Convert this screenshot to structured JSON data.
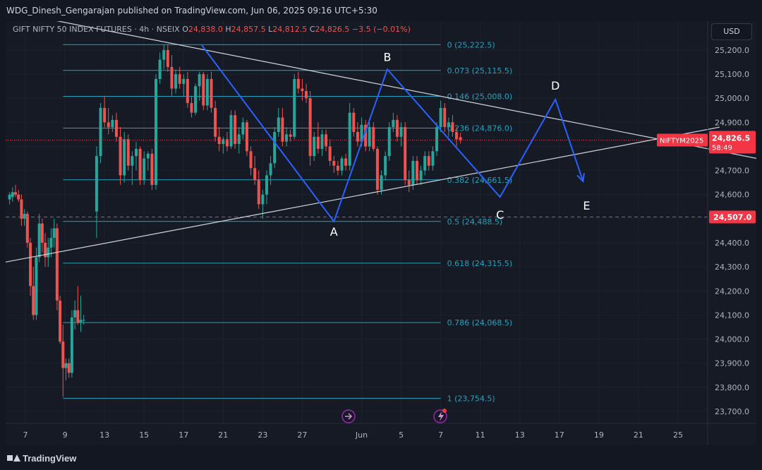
{
  "header": {
    "published_by": "WDG_Dinesh_Gengarajan published on TradingView.com, Jun 06, 2025 09:16 UTC+5:30"
  },
  "legend": {
    "symbol": "GIFT NIFTY 50 INDEX FUTURES · 4h · NSEIX",
    "o_label": "O",
    "open": "24,838.0",
    "h_label": "H",
    "high": "24,857.5",
    "l_label": "L",
    "low": "24,812.5",
    "c_label": "C",
    "close": "24,826.5",
    "change": "−3.5 (−0.01%)"
  },
  "currency": "USD",
  "footer": {
    "brand": "TradingView"
  },
  "colors": {
    "background": "#131722",
    "up": "#26a69a",
    "down": "#ef5350",
    "fib": "#22a3bd",
    "pattern": "#2962ff",
    "trend": "#d1d4dc",
    "tag": "#f23645"
  },
  "icons": [
    "chart-arrow-icon",
    "flash-alert-icon"
  ],
  "chart_data": {
    "type": "candlestick",
    "timeframe": "4h",
    "ylim": [
      23650,
      25320
    ],
    "y_ticks": [
      23700,
      23800,
      23900,
      24000,
      24100,
      24200,
      24300,
      24400,
      24500,
      24600,
      24700,
      24800,
      24900,
      25000,
      25100,
      25200
    ],
    "y_tick_labels": [
      "23,700.0",
      "23,800.0",
      "23,900.0",
      "24,000.0",
      "24,100.0",
      "24,200.0",
      "24,300.0",
      "24,400.0",
      "24,500.0",
      "24,600.0",
      "24,700.0",
      "24,800.0",
      "24,900.0",
      "25,000.0",
      "25,100.0",
      "25,200.0"
    ],
    "x_ticks": [
      {
        "day": 7,
        "label": "7"
      },
      {
        "day": 9,
        "label": "9"
      },
      {
        "day": 11,
        "label": "13"
      },
      {
        "day": 13,
        "label": "15"
      },
      {
        "day": 15,
        "label": "17"
      },
      {
        "day": 17,
        "label": "21"
      },
      {
        "day": 19,
        "label": "23"
      },
      {
        "day": 21,
        "label": "27"
      },
      {
        "day": 24,
        "label": "Jun"
      },
      {
        "day": 26,
        "label": "5"
      },
      {
        "day": 28,
        "label": "7"
      },
      {
        "day": 30,
        "label": "11"
      },
      {
        "day": 32,
        "label": "13"
      },
      {
        "day": 34,
        "label": "17"
      },
      {
        "day": 36,
        "label": "19"
      },
      {
        "day": 38,
        "label": "21"
      },
      {
        "day": 40,
        "label": "25"
      }
    ],
    "fib_levels": [
      {
        "label": "0 (25,222.5)",
        "price": 25222.5
      },
      {
        "label": "0.073 (25,115.5)",
        "price": 25115.5
      },
      {
        "label": "0.146 (25,008.0)",
        "price": 25008.0
      },
      {
        "label": "0.236 (24,876.0)",
        "price": 24876.0
      },
      {
        "label": "0.382 (24,661.5)",
        "price": 24661.5
      },
      {
        "label": "0.5 (24,488.5)",
        "price": 24488.5
      },
      {
        "label": "0.618 (24,315.5)",
        "price": 24315.5
      },
      {
        "label": "0.786 (24,068.5)",
        "price": 24068.5
      },
      {
        "label": "1 (23,754.5)",
        "price": 23754.5
      }
    ],
    "fib_range_days": [
      8.9,
      28.0
    ],
    "pattern_points": [
      {
        "label": "",
        "day": 15.9,
        "price": 25222.5
      },
      {
        "label": "A",
        "day": 22.6,
        "price": 24488.5
      },
      {
        "label": "B",
        "day": 25.3,
        "price": 25120
      },
      {
        "label": "C",
        "day": 31.0,
        "price": 24590
      },
      {
        "label": "D",
        "day": 33.8,
        "price": 24995
      },
      {
        "label": "E",
        "day": 35.2,
        "price": 24655
      }
    ],
    "trendlines": [
      {
        "from": {
          "day": 6.2,
          "price": 25360
        },
        "to": {
          "day": 44.0,
          "price": 24750
        }
      },
      {
        "from": {
          "day": 6.0,
          "price": 24320
        },
        "to": {
          "day": 42.1,
          "price": 24880
        }
      }
    ],
    "reference_price": {
      "label": "24,507.0",
      "price": 24507.0
    },
    "last_price": {
      "symbol": "NIFTYM2025",
      "label": "24,826.5",
      "price": 24826.5,
      "countdown": "58:49"
    },
    "candles": [
      {
        "d": 6.2,
        "o": 24580,
        "h": 24610,
        "l": 24560,
        "c": 24600
      },
      {
        "d": 6.35,
        "o": 24590,
        "h": 24630,
        "l": 24570,
        "c": 24610
      },
      {
        "d": 6.5,
        "o": 24610,
        "h": 24640,
        "l": 24590,
        "c": 24600
      },
      {
        "d": 6.65,
        "o": 24600,
        "h": 24620,
        "l": 24570,
        "c": 24580
      },
      {
        "d": 6.8,
        "o": 24580,
        "h": 24600,
        "l": 24470,
        "c": 24500
      },
      {
        "d": 6.95,
        "o": 24500,
        "h": 24540,
        "l": 24470,
        "c": 24520
      },
      {
        "d": 7.1,
        "o": 24520,
        "h": 24530,
        "l": 24380,
        "c": 24400
      },
      {
        "d": 7.25,
        "o": 24400,
        "h": 24420,
        "l": 24180,
        "c": 24220
      },
      {
        "d": 7.4,
        "o": 24220,
        "h": 24300,
        "l": 24080,
        "c": 24100
      },
      {
        "d": 7.55,
        "o": 24100,
        "h": 24380,
        "l": 24080,
        "c": 24340
      },
      {
        "d": 7.7,
        "o": 24340,
        "h": 24520,
        "l": 24320,
        "c": 24480
      },
      {
        "d": 7.85,
        "o": 24480,
        "h": 24500,
        "l": 24360,
        "c": 24400
      },
      {
        "d": 8.0,
        "o": 24400,
        "h": 24440,
        "l": 24300,
        "c": 24340
      },
      {
        "d": 8.15,
        "o": 24340,
        "h": 24420,
        "l": 24300,
        "c": 24380
      },
      {
        "d": 8.3,
        "o": 24380,
        "h": 24460,
        "l": 24340,
        "c": 24420
      },
      {
        "d": 8.45,
        "o": 24420,
        "h": 24500,
        "l": 24380,
        "c": 24460
      },
      {
        "d": 8.6,
        "o": 24460,
        "h": 24480,
        "l": 24120,
        "c": 24160
      },
      {
        "d": 8.75,
        "o": 24160,
        "h": 24180,
        "l": 23980,
        "c": 23990
      },
      {
        "d": 8.9,
        "o": 23990,
        "h": 24060,
        "l": 23760,
        "c": 23880
      },
      {
        "d": 9.05,
        "o": 23880,
        "h": 23920,
        "l": 23830,
        "c": 23900
      },
      {
        "d": 9.2,
        "o": 23900,
        "h": 23920,
        "l": 23840,
        "c": 23860
      },
      {
        "d": 9.35,
        "o": 23860,
        "h": 24120,
        "l": 23840,
        "c": 24090
      },
      {
        "d": 9.5,
        "o": 24090,
        "h": 24160,
        "l": 24040,
        "c": 24120
      },
      {
        "d": 9.65,
        "o": 24120,
        "h": 24220,
        "l": 24060,
        "c": 24070
      },
      {
        "d": 9.8,
        "o": 24070,
        "h": 24180,
        "l": 24030,
        "c": 24080
      },
      {
        "d": 9.95,
        "o": 24080,
        "h": 24100,
        "l": 24060,
        "c": 24080
      },
      {
        "d": 10.6,
        "o": 24530,
        "h": 24800,
        "l": 24420,
        "c": 24760
      },
      {
        "d": 10.8,
        "o": 24760,
        "h": 24980,
        "l": 24730,
        "c": 24960
      },
      {
        "d": 11.0,
        "o": 24960,
        "h": 25010,
        "l": 24880,
        "c": 24900
      },
      {
        "d": 11.2,
        "o": 24900,
        "h": 24960,
        "l": 24850,
        "c": 24880
      },
      {
        "d": 11.4,
        "o": 24880,
        "h": 24930,
        "l": 24860,
        "c": 24910
      },
      {
        "d": 11.6,
        "o": 24910,
        "h": 24940,
        "l": 24820,
        "c": 24840
      },
      {
        "d": 11.8,
        "o": 24840,
        "h": 24880,
        "l": 24640,
        "c": 24680
      },
      {
        "d": 12.0,
        "o": 24680,
        "h": 24860,
        "l": 24650,
        "c": 24830
      },
      {
        "d": 12.2,
        "o": 24830,
        "h": 24850,
        "l": 24700,
        "c": 24720
      },
      {
        "d": 12.4,
        "o": 24720,
        "h": 24780,
        "l": 24640,
        "c": 24760
      },
      {
        "d": 12.6,
        "o": 24760,
        "h": 24820,
        "l": 24700,
        "c": 24790
      },
      {
        "d": 12.8,
        "o": 24790,
        "h": 24800,
        "l": 24640,
        "c": 24660
      },
      {
        "d": 13.0,
        "o": 24660,
        "h": 24780,
        "l": 24640,
        "c": 24750
      },
      {
        "d": 13.2,
        "o": 24750,
        "h": 24780,
        "l": 24700,
        "c": 24770
      },
      {
        "d": 13.4,
        "o": 24770,
        "h": 24790,
        "l": 24620,
        "c": 24640
      },
      {
        "d": 13.6,
        "o": 24640,
        "h": 25100,
        "l": 24620,
        "c": 25080
      },
      {
        "d": 13.8,
        "o": 25080,
        "h": 25190,
        "l": 25060,
        "c": 25160
      },
      {
        "d": 14.0,
        "o": 25160,
        "h": 25222,
        "l": 25120,
        "c": 25200
      },
      {
        "d": 14.2,
        "o": 25200,
        "h": 25222,
        "l": 25110,
        "c": 25130
      },
      {
        "d": 14.4,
        "o": 25130,
        "h": 25180,
        "l": 25010,
        "c": 25040
      },
      {
        "d": 14.6,
        "o": 25040,
        "h": 25120,
        "l": 25020,
        "c": 25100
      },
      {
        "d": 14.8,
        "o": 25100,
        "h": 25130,
        "l": 25040,
        "c": 25060
      },
      {
        "d": 15.0,
        "o": 25060,
        "h": 25100,
        "l": 25010,
        "c": 25080
      },
      {
        "d": 15.2,
        "o": 25080,
        "h": 25110,
        "l": 24960,
        "c": 24980
      },
      {
        "d": 15.4,
        "o": 24980,
        "h": 25010,
        "l": 24920,
        "c": 24940
      },
      {
        "d": 15.6,
        "o": 24940,
        "h": 25060,
        "l": 24930,
        "c": 25050
      },
      {
        "d": 15.8,
        "o": 25050,
        "h": 25110,
        "l": 24990,
        "c": 25100
      },
      {
        "d": 16.0,
        "o": 25100,
        "h": 25110,
        "l": 24950,
        "c": 24970
      },
      {
        "d": 16.2,
        "o": 24970,
        "h": 25100,
        "l": 24950,
        "c": 25080
      },
      {
        "d": 16.4,
        "o": 25080,
        "h": 25110,
        "l": 24940,
        "c": 24960
      },
      {
        "d": 16.6,
        "o": 24960,
        "h": 24990,
        "l": 24820,
        "c": 24840
      },
      {
        "d": 16.8,
        "o": 24840,
        "h": 24880,
        "l": 24780,
        "c": 24810
      },
      {
        "d": 17.0,
        "o": 24810,
        "h": 24840,
        "l": 24770,
        "c": 24830
      },
      {
        "d": 17.2,
        "o": 24830,
        "h": 24860,
        "l": 24780,
        "c": 24800
      },
      {
        "d": 17.4,
        "o": 24800,
        "h": 24950,
        "l": 24790,
        "c": 24930
      },
      {
        "d": 17.6,
        "o": 24930,
        "h": 24950,
        "l": 24790,
        "c": 24810
      },
      {
        "d": 17.8,
        "o": 24810,
        "h": 24880,
        "l": 24770,
        "c": 24850
      },
      {
        "d": 18.0,
        "o": 24850,
        "h": 24920,
        "l": 24830,
        "c": 24900
      },
      {
        "d": 18.2,
        "o": 24900,
        "h": 24910,
        "l": 24760,
        "c": 24780
      },
      {
        "d": 18.4,
        "o": 24780,
        "h": 24800,
        "l": 24680,
        "c": 24710
      },
      {
        "d": 18.6,
        "o": 24710,
        "h": 24760,
        "l": 24640,
        "c": 24660
      },
      {
        "d": 18.8,
        "o": 24660,
        "h": 24700,
        "l": 24540,
        "c": 24560
      },
      {
        "d": 19.0,
        "o": 24560,
        "h": 24620,
        "l": 24500,
        "c": 24600
      },
      {
        "d": 19.2,
        "o": 24600,
        "h": 24700,
        "l": 24560,
        "c": 24680
      },
      {
        "d": 19.4,
        "o": 24680,
        "h": 24760,
        "l": 24640,
        "c": 24730
      },
      {
        "d": 19.6,
        "o": 24730,
        "h": 24880,
        "l": 24710,
        "c": 24860
      },
      {
        "d": 19.8,
        "o": 24860,
        "h": 24960,
        "l": 24840,
        "c": 24920
      },
      {
        "d": 20.0,
        "o": 24920,
        "h": 24960,
        "l": 24800,
        "c": 24820
      },
      {
        "d": 20.2,
        "o": 24820,
        "h": 24880,
        "l": 24800,
        "c": 24850
      },
      {
        "d": 20.4,
        "o": 24850,
        "h": 24870,
        "l": 24820,
        "c": 24840
      },
      {
        "d": 20.6,
        "o": 24840,
        "h": 25100,
        "l": 24830,
        "c": 25080
      },
      {
        "d": 20.8,
        "o": 25080,
        "h": 25110,
        "l": 25020,
        "c": 25040
      },
      {
        "d": 21.0,
        "o": 25040,
        "h": 25080,
        "l": 24990,
        "c": 25030
      },
      {
        "d": 21.2,
        "o": 25030,
        "h": 25060,
        "l": 24980,
        "c": 25000
      },
      {
        "d": 21.4,
        "o": 25000,
        "h": 25030,
        "l": 24720,
        "c": 24760
      },
      {
        "d": 21.6,
        "o": 24760,
        "h": 24860,
        "l": 24740,
        "c": 24840
      },
      {
        "d": 21.8,
        "o": 24840,
        "h": 24900,
        "l": 24770,
        "c": 24790
      },
      {
        "d": 22.0,
        "o": 24790,
        "h": 24870,
        "l": 24760,
        "c": 24850
      },
      {
        "d": 22.2,
        "o": 24850,
        "h": 24870,
        "l": 24780,
        "c": 24800
      },
      {
        "d": 22.4,
        "o": 24800,
        "h": 24830,
        "l": 24720,
        "c": 24740
      },
      {
        "d": 22.6,
        "o": 24740,
        "h": 24760,
        "l": 24690,
        "c": 24720
      },
      {
        "d": 22.8,
        "o": 24720,
        "h": 24740,
        "l": 24680,
        "c": 24700
      },
      {
        "d": 23.0,
        "o": 24700,
        "h": 24760,
        "l": 24680,
        "c": 24750
      },
      {
        "d": 23.2,
        "o": 24750,
        "h": 24770,
        "l": 24700,
        "c": 24720
      },
      {
        "d": 23.4,
        "o": 24720,
        "h": 24980,
        "l": 24700,
        "c": 24940
      },
      {
        "d": 23.6,
        "o": 24940,
        "h": 24960,
        "l": 24840,
        "c": 24860
      },
      {
        "d": 23.8,
        "o": 24860,
        "h": 24900,
        "l": 24800,
        "c": 24820
      },
      {
        "d": 24.0,
        "o": 24820,
        "h": 24920,
        "l": 24800,
        "c": 24890
      },
      {
        "d": 24.2,
        "o": 24890,
        "h": 24910,
        "l": 24780,
        "c": 24800
      },
      {
        "d": 24.4,
        "o": 24800,
        "h": 24900,
        "l": 24780,
        "c": 24880
      },
      {
        "d": 24.6,
        "o": 24880,
        "h": 24900,
        "l": 24780,
        "c": 24790
      },
      {
        "d": 24.8,
        "o": 24790,
        "h": 24800,
        "l": 24600,
        "c": 24620
      },
      {
        "d": 25.0,
        "o": 24620,
        "h": 24700,
        "l": 24600,
        "c": 24680
      },
      {
        "d": 25.2,
        "o": 24680,
        "h": 24780,
        "l": 24660,
        "c": 24760
      },
      {
        "d": 25.4,
        "o": 24760,
        "h": 24900,
        "l": 24740,
        "c": 24880
      },
      {
        "d": 25.6,
        "o": 24880,
        "h": 24940,
        "l": 24860,
        "c": 24910
      },
      {
        "d": 25.8,
        "o": 24910,
        "h": 24930,
        "l": 24820,
        "c": 24840
      },
      {
        "d": 26.0,
        "o": 24840,
        "h": 24900,
        "l": 24800,
        "c": 24880
      },
      {
        "d": 26.2,
        "o": 24880,
        "h": 24900,
        "l": 24640,
        "c": 24660
      },
      {
        "d": 26.4,
        "o": 24660,
        "h": 24700,
        "l": 24610,
        "c": 24640
      },
      {
        "d": 26.6,
        "o": 24640,
        "h": 24760,
        "l": 24620,
        "c": 24740
      },
      {
        "d": 26.8,
        "o": 24740,
        "h": 24760,
        "l": 24640,
        "c": 24660
      },
      {
        "d": 27.0,
        "o": 24660,
        "h": 24720,
        "l": 24640,
        "c": 24700
      },
      {
        "d": 27.2,
        "o": 24700,
        "h": 24780,
        "l": 24680,
        "c": 24760
      },
      {
        "d": 27.4,
        "o": 24760,
        "h": 24780,
        "l": 24700,
        "c": 24720
      },
      {
        "d": 27.6,
        "o": 24720,
        "h": 24800,
        "l": 24700,
        "c": 24780
      },
      {
        "d": 27.8,
        "o": 24780,
        "h": 24900,
        "l": 24760,
        "c": 24880
      },
      {
        "d": 28.0,
        "o": 24880,
        "h": 24990,
        "l": 24860,
        "c": 24960
      },
      {
        "d": 28.2,
        "o": 24960,
        "h": 24980,
        "l": 24860,
        "c": 24880
      },
      {
        "d": 28.4,
        "o": 24880,
        "h": 24920,
        "l": 24840,
        "c": 24900
      },
      {
        "d": 28.6,
        "o": 24900,
        "h": 24930,
        "l": 24840,
        "c": 24860
      },
      {
        "d": 28.8,
        "o": 24860,
        "h": 24880,
        "l": 24800,
        "c": 24830
      },
      {
        "d": 29.0,
        "o": 24838,
        "h": 24857,
        "l": 24812,
        "c": 24826
      }
    ]
  }
}
